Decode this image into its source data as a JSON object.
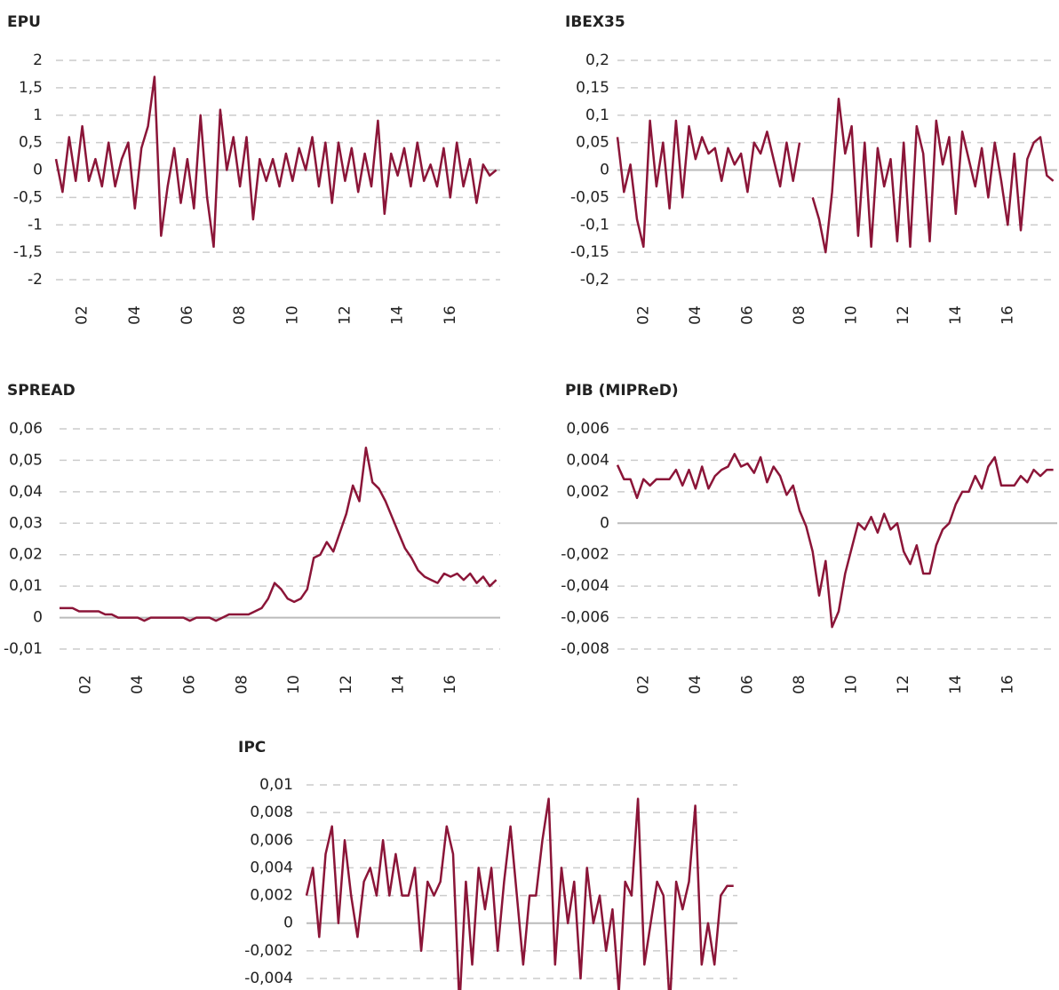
{
  "chart_data": [
    {
      "type": "line",
      "title": "EPU",
      "color": "#8b1538",
      "x": [
        2001,
        2001.25,
        2001.5,
        2001.75,
        2002,
        2002.25,
        2002.5,
        2002.75,
        2003,
        2003.25,
        2003.5,
        2003.75,
        2004,
        2004.25,
        2004.5,
        2004.75,
        2005,
        2005.25,
        2005.5,
        2005.75,
        2006,
        2006.25,
        2006.5,
        2006.75,
        2007,
        2007.25,
        2007.5,
        2007.75,
        2008,
        2008.25,
        2008.5,
        2008.75,
        2009,
        2009.25,
        2009.5,
        2009.75,
        2010,
        2010.25,
        2010.5,
        2010.75,
        2011,
        2011.25,
        2011.5,
        2011.75,
        2012,
        2012.25,
        2012.5,
        2012.75,
        2013,
        2013.25,
        2013.5,
        2013.75,
        2014,
        2014.25,
        2014.5,
        2014.75,
        2015,
        2015.25,
        2015.5,
        2015.75,
        2016,
        2016.25,
        2016.5,
        2016.75,
        2017,
        2017.25,
        2017.5,
        2017.75
      ],
      "values": [
        0.2,
        -0.4,
        0.6,
        -0.2,
        0.8,
        -0.2,
        0.2,
        -0.3,
        0.5,
        -0.3,
        0.2,
        0.5,
        -0.7,
        0.4,
        0.8,
        1.7,
        -1.2,
        -0.3,
        0.4,
        -0.6,
        0.2,
        -0.7,
        1.0,
        -0.5,
        -1.4,
        1.1,
        0.0,
        0.6,
        -0.3,
        0.6,
        -0.9,
        0.2,
        -0.2,
        0.2,
        -0.3,
        0.3,
        -0.2,
        0.4,
        0.0,
        0.6,
        -0.3,
        0.5,
        -0.6,
        0.5,
        -0.2,
        0.4,
        -0.4,
        0.3,
        -0.3,
        0.9,
        -0.8,
        0.3,
        -0.1,
        0.4,
        -0.3,
        0.5,
        -0.2,
        0.1,
        -0.3,
        0.4,
        -0.5,
        0.5,
        -0.3,
        0.2,
        -0.6,
        0.1,
        -0.1,
        0.0
      ],
      "xlim": [
        2001,
        2017.9
      ],
      "xticks": [
        {
          "value": 2002,
          "label": "02"
        },
        {
          "value": 2004,
          "label": "04"
        },
        {
          "value": 2006,
          "label": "06"
        },
        {
          "value": 2008,
          "label": "08"
        },
        {
          "value": 2010,
          "label": "10"
        },
        {
          "value": 2012,
          "label": "12"
        },
        {
          "value": 2014,
          "label": "14"
        },
        {
          "value": 2016,
          "label": "16"
        }
      ],
      "ylim": [
        -2,
        2
      ],
      "yticks": [
        2,
        {
          "value": 1.5,
          "label": "1,5"
        },
        1,
        {
          "value": 0.5,
          "label": "0,5"
        },
        0,
        {
          "value": -0.5,
          "label": "-0,5"
        },
        -1,
        {
          "value": -1.5,
          "label": "-1,5"
        },
        -2
      ],
      "grid": true
    },
    {
      "type": "line",
      "title": "IBEX35",
      "color": "#8b1538",
      "x": [
        2001,
        2001.25,
        2001.5,
        2001.75,
        2002,
        2002.25,
        2002.5,
        2002.75,
        2003,
        2003.25,
        2003.5,
        2003.75,
        2004,
        2004.25,
        2004.5,
        2004.75,
        2005,
        2005.25,
        2005.5,
        2005.75,
        2006,
        2006.25,
        2006.5,
        2006.75,
        2007,
        2007.25,
        2007.5,
        2007.75,
        2008,
        2008.25,
        2008.5,
        2008.75,
        2009,
        2009.25,
        2009.5,
        2009.75,
        2010,
        2010.25,
        2010.5,
        2010.75,
        2011,
        2011.25,
        2011.5,
        2011.75,
        2012,
        2012.25,
        2012.5,
        2012.75,
        2013,
        2013.25,
        2013.5,
        2013.75,
        2014,
        2014.25,
        2014.5,
        2014.75,
        2015,
        2015.25,
        2015.5,
        2015.75,
        2016,
        2016.25,
        2016.5,
        2016.75,
        2017,
        2017.25,
        2017.5,
        2017.75
      ],
      "values": [
        0.06,
        -0.04,
        0.01,
        -0.09,
        -0.14,
        0.09,
        -0.03,
        0.05,
        -0.07,
        0.09,
        -0.05,
        0.08,
        0.02,
        0.06,
        0.03,
        0.04,
        -0.02,
        0.04,
        0.01,
        0.03,
        -0.04,
        0.05,
        0.03,
        0.07,
        0.02,
        -0.03,
        0.05,
        -0.02,
        0.05,
        null,
        -0.05,
        -0.09,
        -0.15,
        -0.04,
        0.13,
        0.03,
        0.08,
        -0.12,
        0.05,
        -0.14,
        0.04,
        -0.03,
        0.02,
        -0.13,
        0.05,
        -0.14,
        0.08,
        0.03,
        -0.13,
        0.09,
        0.01,
        0.06,
        -0.08,
        0.07,
        0.02,
        -0.03,
        0.04,
        -0.05,
        0.05,
        -0.02,
        -0.1,
        0.03,
        -0.11,
        0.02,
        0.05,
        0.06,
        -0.01,
        -0.02
      ],
      "xlim": [
        2001,
        2017.9
      ],
      "xticks": [
        {
          "value": 2002,
          "label": "02"
        },
        {
          "value": 2004,
          "label": "04"
        },
        {
          "value": 2006,
          "label": "06"
        },
        {
          "value": 2008,
          "label": "08"
        },
        {
          "value": 2010,
          "label": "10"
        },
        {
          "value": 2012,
          "label": "12"
        },
        {
          "value": 2014,
          "label": "14"
        },
        {
          "value": 2016,
          "label": "16"
        }
      ],
      "ylim": [
        -0.2,
        0.2
      ],
      "yticks": [
        {
          "value": 0.2,
          "label": "0,2"
        },
        {
          "value": 0.15,
          "label": "0,15"
        },
        {
          "value": 0.1,
          "label": "0,1"
        },
        {
          "value": 0.05,
          "label": "0,05"
        },
        0,
        {
          "value": -0.05,
          "label": "-0,05"
        },
        {
          "value": -0.1,
          "label": "-0,1"
        },
        {
          "value": -0.15,
          "label": "-0,15"
        },
        {
          "value": -0.2,
          "label": "-0,2"
        }
      ],
      "grid": true
    },
    {
      "type": "line",
      "title": "SPREAD",
      "color": "#8b1538",
      "x": [
        2001,
        2001.25,
        2001.5,
        2001.75,
        2002,
        2002.25,
        2002.5,
        2002.75,
        2003,
        2003.25,
        2003.5,
        2003.75,
        2004,
        2004.25,
        2004.5,
        2004.75,
        2005,
        2005.25,
        2005.5,
        2005.75,
        2006,
        2006.25,
        2006.5,
        2006.75,
        2007,
        2007.25,
        2007.5,
        2007.75,
        2008,
        2008.25,
        2008.5,
        2008.75,
        2009,
        2009.25,
        2009.5,
        2009.75,
        2010,
        2010.25,
        2010.5,
        2010.75,
        2011,
        2011.25,
        2011.5,
        2011.75,
        2012,
        2012.25,
        2012.5,
        2012.75,
        2013,
        2013.25,
        2013.5,
        2013.75,
        2014,
        2014.25,
        2014.5,
        2014.75,
        2015,
        2015.25,
        2015.5,
        2015.75,
        2016,
        2016.25,
        2016.5,
        2016.75,
        2017,
        2017.25,
        2017.5,
        2017.75
      ],
      "values": [
        0.003,
        0.003,
        0.003,
        0.002,
        0.002,
        0.002,
        0.002,
        0.001,
        0.001,
        0.0,
        0.0,
        0.0,
        0.0,
        -0.001,
        0.0,
        0.0,
        0.0,
        0.0,
        0.0,
        0.0,
        -0.001,
        0.0,
        0.0,
        0.0,
        -0.001,
        0.0,
        0.001,
        0.001,
        0.001,
        0.001,
        0.002,
        0.003,
        0.006,
        0.011,
        0.009,
        0.006,
        0.005,
        0.006,
        0.009,
        0.019,
        0.02,
        0.024,
        0.021,
        0.027,
        0.033,
        0.042,
        0.037,
        0.054,
        0.043,
        0.041,
        0.037,
        0.032,
        0.027,
        0.022,
        0.019,
        0.015,
        0.013,
        0.012,
        0.011,
        0.014,
        0.013,
        0.014,
        0.012,
        0.014,
        0.011,
        0.013,
        0.01,
        0.012
      ],
      "xlim": [
        2001,
        2017.9
      ],
      "xticks": [
        {
          "value": 2002,
          "label": "02"
        },
        {
          "value": 2004,
          "label": "04"
        },
        {
          "value": 2006,
          "label": "06"
        },
        {
          "value": 2008,
          "label": "08"
        },
        {
          "value": 2010,
          "label": "10"
        },
        {
          "value": 2012,
          "label": "12"
        },
        {
          "value": 2014,
          "label": "14"
        },
        {
          "value": 2016,
          "label": "16"
        }
      ],
      "ylim": [
        -0.01,
        0.06
      ],
      "yticks": [
        {
          "value": 0.06,
          "label": "0,06"
        },
        {
          "value": 0.05,
          "label": "0,05"
        },
        {
          "value": 0.04,
          "label": "0,04"
        },
        {
          "value": 0.03,
          "label": "0,03"
        },
        {
          "value": 0.02,
          "label": "0,02"
        },
        {
          "value": 0.01,
          "label": "0,01"
        },
        0,
        {
          "value": -0.01,
          "label": "-0,01"
        }
      ],
      "grid": true
    },
    {
      "type": "line",
      "title": "PIB (MIPReD)",
      "color": "#8b1538",
      "x": [
        2001,
        2001.25,
        2001.5,
        2001.75,
        2002,
        2002.25,
        2002.5,
        2002.75,
        2003,
        2003.25,
        2003.5,
        2003.75,
        2004,
        2004.25,
        2004.5,
        2004.75,
        2005,
        2005.25,
        2005.5,
        2005.75,
        2006,
        2006.25,
        2006.5,
        2006.75,
        2007,
        2007.25,
        2007.5,
        2007.75,
        2008,
        2008.25,
        2008.5,
        2008.75,
        2009,
        2009.25,
        2009.5,
        2009.75,
        2010,
        2010.25,
        2010.5,
        2010.75,
        2011,
        2011.25,
        2011.5,
        2011.75,
        2012,
        2012.25,
        2012.5,
        2012.75,
        2013,
        2013.25,
        2013.5,
        2013.75,
        2014,
        2014.25,
        2014.5,
        2014.75,
        2015,
        2015.25,
        2015.5,
        2015.75,
        2016,
        2016.25,
        2016.5,
        2016.75,
        2017,
        2017.25,
        2017.5,
        2017.75
      ],
      "values": [
        0.0037,
        0.0028,
        0.0028,
        0.0016,
        0.0028,
        0.0024,
        0.0028,
        0.0028,
        0.0028,
        0.0034,
        0.0024,
        0.0034,
        0.0022,
        0.0036,
        0.0022,
        0.003,
        0.0034,
        0.0036,
        0.0044,
        0.0036,
        0.0038,
        0.0032,
        0.0042,
        0.0026,
        0.0036,
        0.003,
        0.0018,
        0.0024,
        0.0008,
        -0.0002,
        -0.0018,
        -0.0046,
        -0.0024,
        -0.0066,
        -0.0056,
        -0.0032,
        -0.0016,
        0.0,
        -0.0004,
        0.0004,
        -0.0006,
        0.0006,
        -0.0004,
        0.0,
        -0.0018,
        -0.0026,
        -0.0014,
        -0.0032,
        -0.0032,
        -0.0014,
        -0.0004,
        0.0,
        0.0012,
        0.002,
        0.002,
        0.003,
        0.0022,
        0.0036,
        0.0042,
        0.0024,
        0.0024,
        0.0024,
        0.003,
        0.0026,
        0.0034,
        0.003,
        0.0034,
        0.0034
      ],
      "xlim": [
        2001,
        2017.9
      ],
      "xticks": [
        {
          "value": 2002,
          "label": "02"
        },
        {
          "value": 2004,
          "label": "04"
        },
        {
          "value": 2006,
          "label": "06"
        },
        {
          "value": 2008,
          "label": "08"
        },
        {
          "value": 2010,
          "label": "10"
        },
        {
          "value": 2012,
          "label": "12"
        },
        {
          "value": 2014,
          "label": "14"
        },
        {
          "value": 2016,
          "label": "16"
        }
      ],
      "ylim": [
        -0.008,
        0.006
      ],
      "yticks": [
        {
          "value": 0.006,
          "label": "0,006"
        },
        {
          "value": 0.004,
          "label": "0,004"
        },
        {
          "value": 0.002,
          "label": "0,002"
        },
        0,
        {
          "value": -0.002,
          "label": "-0,002"
        },
        {
          "value": -0.004,
          "label": "-0,004"
        },
        {
          "value": -0.006,
          "label": "-0,006"
        },
        {
          "value": -0.008,
          "label": "-0,008"
        }
      ],
      "grid": true
    },
    {
      "type": "line",
      "title": "IPC",
      "color": "#8b1538",
      "x": [
        2001,
        2001.25,
        2001.5,
        2001.75,
        2002,
        2002.25,
        2002.5,
        2002.75,
        2003,
        2003.25,
        2003.5,
        2003.75,
        2004,
        2004.25,
        2004.5,
        2004.75,
        2005,
        2005.25,
        2005.5,
        2005.75,
        2006,
        2006.25,
        2006.5,
        2006.75,
        2007,
        2007.25,
        2007.5,
        2007.75,
        2008,
        2008.25,
        2008.5,
        2008.75,
        2009,
        2009.25,
        2009.5,
        2009.75,
        2010,
        2010.25,
        2010.5,
        2010.75,
        2011,
        2011.25,
        2011.5,
        2011.75,
        2012,
        2012.25,
        2012.5,
        2012.75,
        2013,
        2013.25,
        2013.5,
        2013.75,
        2014,
        2014.25,
        2014.5,
        2014.75,
        2015,
        2015.25,
        2015.5,
        2015.75,
        2016,
        2016.25,
        2016.5,
        2016.75,
        2017,
        2017.25,
        2017.5,
        2017.75
      ],
      "values": [
        0.002,
        0.004,
        -0.001,
        0.005,
        0.007,
        0.0,
        0.006,
        0.002,
        -0.001,
        0.003,
        0.004,
        0.002,
        0.006,
        0.002,
        0.005,
        0.002,
        0.002,
        0.004,
        -0.002,
        0.003,
        0.002,
        0.003,
        0.007,
        0.005,
        -0.006,
        0.003,
        -0.003,
        0.004,
        0.001,
        0.004,
        -0.002,
        0.003,
        0.007,
        0.002,
        -0.003,
        0.002,
        0.002,
        0.006,
        0.009,
        -0.003,
        0.004,
        0.0,
        0.003,
        -0.004,
        0.004,
        0.0,
        0.002,
        -0.002,
        0.001,
        -0.005,
        0.003,
        0.002,
        0.009,
        -0.003,
        0.0,
        0.003,
        0.002,
        -0.006,
        0.003,
        0.001,
        0.003,
        0.0085,
        -0.003,
        0.0,
        -0.003,
        0.002,
        0.0027,
        0.0027
      ],
      "xlim": [
        2001,
        2017.9
      ],
      "ylim": [
        -0.004,
        0.01
      ],
      "yticks": [
        {
          "value": 0.01,
          "label": "0,01"
        },
        {
          "value": 0.008,
          "label": "0,008"
        },
        {
          "value": 0.006,
          "label": "0,006"
        },
        {
          "value": 0.004,
          "label": "0,004"
        },
        {
          "value": 0.002,
          "label": "0,002"
        },
        0,
        {
          "value": -0.002,
          "label": "-0,002"
        },
        {
          "value": -0.004,
          "label": "-0,004"
        }
      ],
      "grid": true
    }
  ]
}
